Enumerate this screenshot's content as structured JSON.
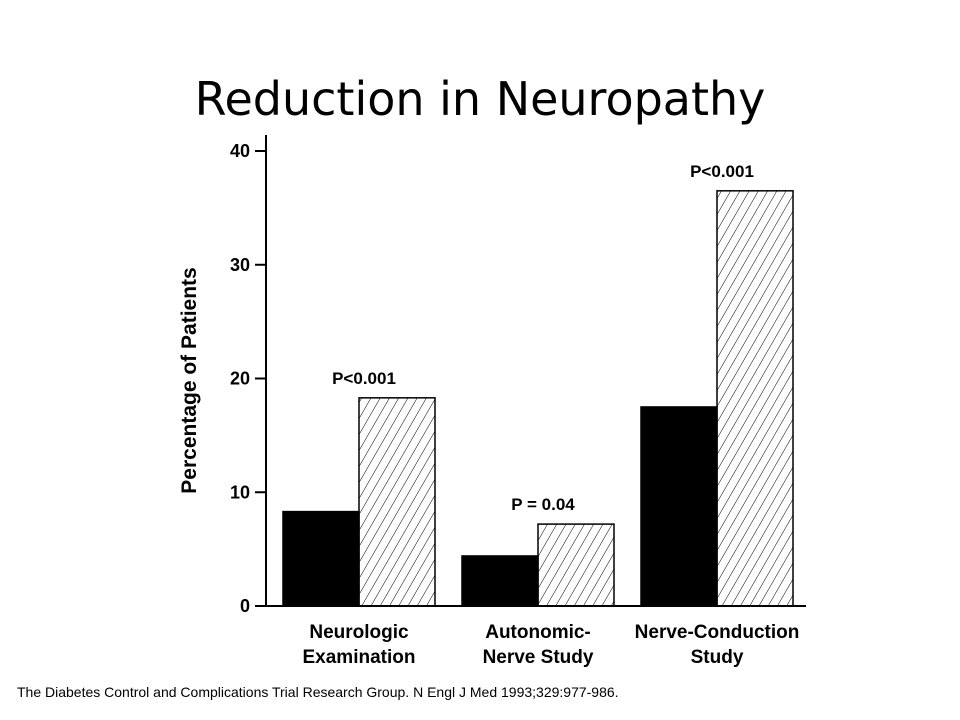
{
  "slide": {
    "title": "Reduction in Neuropathy",
    "citation": "The Diabetes Control and Complications Trial Research Group. N Engl J Med 1993;329:977-986."
  },
  "chart_data": {
    "type": "bar",
    "title": "",
    "xlabel": "",
    "ylabel": "Percentage of Patients",
    "ylim": [
      0,
      40
    ],
    "yticks": [
      0,
      10,
      20,
      30,
      40
    ],
    "grid": false,
    "legend": "none",
    "categories": [
      [
        "Neurologic",
        "Examination"
      ],
      [
        "Autonomic-",
        "Nerve Study"
      ],
      [
        "Nerve-Conduction",
        "Study"
      ]
    ],
    "series": [
      {
        "style": "solid",
        "color": "#000000",
        "values": [
          8.3,
          4.4,
          17.5
        ]
      },
      {
        "style": "hatched",
        "color": "#000000",
        "values": [
          18.3,
          7.2,
          36.5
        ]
      }
    ],
    "annotations": [
      "P<0.001",
      "P = 0.04",
      "P<0.001"
    ]
  }
}
